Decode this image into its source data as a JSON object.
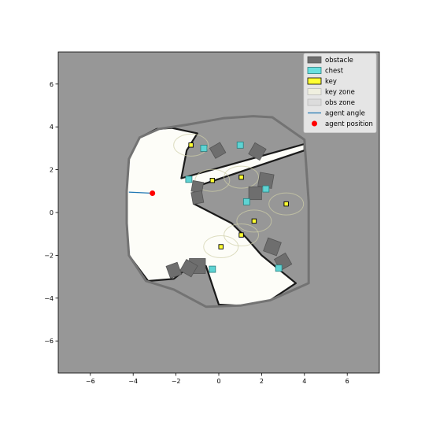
{
  "chart_data": {
    "type": "scatter",
    "title": "",
    "xlabel": "",
    "ylabel": "",
    "xlim": [
      -7.5,
      7.5
    ],
    "ylim": [
      -7.5,
      7.5
    ],
    "xticks": [
      "−6",
      "−4",
      "−2",
      "0",
      "2",
      "4",
      "6"
    ],
    "yticks": [
      "6",
      "4",
      "2",
      "0",
      "−2",
      "−4",
      "−6"
    ],
    "grid": false,
    "legend_position": "top-right",
    "background_color": "#979797",
    "legend": [
      {
        "key": "obstacle",
        "label": "obstacle",
        "swatch": "#6e6e6e",
        "kind": "patch"
      },
      {
        "key": "chest",
        "label": "chest",
        "swatch": "#69e0e0",
        "kind": "patch"
      },
      {
        "key": "key",
        "label": "key",
        "swatch": "#ffff33",
        "kind": "patch"
      },
      {
        "key": "key_zone",
        "label": "key zone",
        "swatch": "#efefdf",
        "kind": "patch"
      },
      {
        "key": "obs_zone",
        "label": "obs zone",
        "swatch": "#dcdcdc",
        "kind": "patch"
      },
      {
        "key": "agent_angle",
        "label": "agent angle",
        "swatch": "#1f77b4",
        "kind": "line"
      },
      {
        "key": "agent_position",
        "label": "agent position",
        "swatch": "#ff0000",
        "kind": "dot"
      }
    ],
    "boundary": [
      [
        -3.7,
        3.5
      ],
      [
        -2.8,
        3.9
      ],
      [
        -1.5,
        4.1
      ],
      [
        0.2,
        4.4
      ],
      [
        1.6,
        4.5
      ],
      [
        2.5,
        4.45
      ],
      [
        4.0,
        3.4
      ],
      [
        4.2,
        0.5
      ],
      [
        4.2,
        -3.3
      ],
      [
        2.4,
        -4.1
      ],
      [
        1.0,
        -4.35
      ],
      [
        -0.6,
        -4.4
      ],
      [
        -2.1,
        -3.6
      ],
      [
        -3.4,
        -3.2
      ],
      [
        -4.2,
        -2.0
      ],
      [
        -4.3,
        -0.5
      ],
      [
        -4.3,
        1.0
      ],
      [
        -4.2,
        2.5
      ]
    ],
    "free_region": [
      [
        -4.3,
        1.0
      ],
      [
        -4.2,
        2.5
      ],
      [
        -3.7,
        3.5
      ],
      [
        -2.9,
        3.9
      ],
      [
        -2.2,
        3.95
      ],
      [
        -1.0,
        3.7
      ],
      [
        -1.5,
        2.9
      ],
      [
        -1.75,
        1.6
      ],
      [
        4.0,
        3.2
      ],
      [
        4.0,
        2.9
      ],
      [
        -1.1,
        1.2
      ],
      [
        -1.15,
        0.4
      ],
      [
        0.6,
        -0.5
      ],
      [
        1.3,
        -1.2
      ],
      [
        2.0,
        -2.0
      ],
      [
        3.6,
        -3.3
      ],
      [
        2.4,
        -4.1
      ],
      [
        1.0,
        -4.35
      ],
      [
        0.0,
        -4.3
      ],
      [
        -0.6,
        -2.5
      ],
      [
        -1.1,
        -2.3
      ],
      [
        -2.1,
        -3.1
      ],
      [
        -3.3,
        -3.2
      ],
      [
        -4.2,
        -2.0
      ],
      [
        -4.3,
        -0.5
      ]
    ],
    "obstacles": [
      {
        "x": 0.6,
        "y": -0.8,
        "w": 0.0,
        "h": 0.0,
        "angle": 0
      },
      {
        "x": -0.05,
        "y": 2.9,
        "w": 0.55,
        "h": 0.55,
        "angle": -30
      },
      {
        "x": 1.8,
        "y": 2.85,
        "w": 0.6,
        "h": 0.6,
        "angle": 30
      },
      {
        "x": 2.2,
        "y": 1.5,
        "w": 0.65,
        "h": 0.65,
        "angle": 10
      },
      {
        "x": 1.7,
        "y": 0.9,
        "w": 0.6,
        "h": 0.6,
        "angle": 0
      },
      {
        "x": -1.0,
        "y": 1.2,
        "w": 0.5,
        "h": 0.5,
        "angle": 10
      },
      {
        "x": -1.0,
        "y": 0.7,
        "w": 0.5,
        "h": 0.55,
        "angle": -10
      },
      {
        "x": 2.5,
        "y": -1.6,
        "w": 0.65,
        "h": 0.65,
        "angle": 20
      },
      {
        "x": 3.0,
        "y": -2.3,
        "w": 0.6,
        "h": 0.6,
        "angle": -30
      },
      {
        "x": -1.0,
        "y": -2.5,
        "w": 0.75,
        "h": 0.7,
        "angle": 0
      },
      {
        "x": -1.4,
        "y": -2.6,
        "w": 0.6,
        "h": 0.6,
        "angle": 30
      },
      {
        "x": -2.1,
        "y": -2.7,
        "w": 0.55,
        "h": 0.6,
        "angle": -20
      }
    ],
    "chests": [
      {
        "x": -0.7,
        "y": 3.0
      },
      {
        "x": 1.0,
        "y": 3.15
      },
      {
        "x": -1.4,
        "y": 1.55
      },
      {
        "x": 2.2,
        "y": 1.1
      },
      {
        "x": 1.3,
        "y": 0.5
      },
      {
        "x": -0.3,
        "y": -2.65
      },
      {
        "x": 2.8,
        "y": -2.6
      }
    ],
    "keys": [
      {
        "x": -1.3,
        "y": 3.15
      },
      {
        "x": 1.05,
        "y": 1.65
      },
      {
        "x": -0.3,
        "y": 1.5
      },
      {
        "x": 3.15,
        "y": 0.4
      },
      {
        "x": 1.65,
        "y": -0.4
      },
      {
        "x": 1.05,
        "y": -1.05
      },
      {
        "x": 0.1,
        "y": -1.6
      }
    ],
    "agent": {
      "x": -3.1,
      "y": 0.9,
      "angle_end": [
        -4.2,
        0.95
      ]
    }
  }
}
